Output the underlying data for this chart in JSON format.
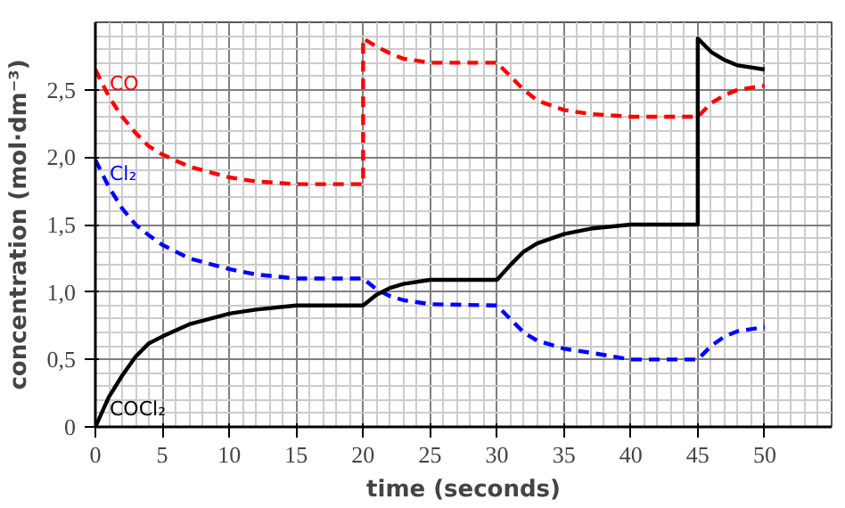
{
  "chart_data": {
    "type": "line",
    "xlabel": "time (seconds)",
    "ylabel": "concentration (mol·dm⁻³)",
    "xlim": [
      0,
      55
    ],
    "ylim": [
      0,
      3
    ],
    "xticks": [
      0,
      5,
      10,
      15,
      20,
      25,
      30,
      35,
      40,
      45,
      50
    ],
    "yticks": [
      0,
      {
        "value": 0.5,
        "label": "0,5"
      },
      {
        "value": 1.0,
        "label": "1,0"
      },
      {
        "value": 1.5,
        "label": "1,5"
      },
      {
        "value": 2.0,
        "label": "2,0"
      },
      {
        "value": 2.5,
        "label": "2,5"
      }
    ],
    "grid": true,
    "marker": "none",
    "series": [
      {
        "name": "CO",
        "color": "#ff0000",
        "line_style": "dashed",
        "x": [
          0,
          1,
          2,
          3,
          4,
          5,
          7,
          10,
          12,
          15,
          20,
          20,
          21,
          22,
          23,
          25,
          30,
          31,
          32,
          33,
          35,
          37,
          40,
          45,
          46,
          47,
          48,
          50
        ],
        "values": [
          2.65,
          2.45,
          2.3,
          2.18,
          2.08,
          2.02,
          1.93,
          1.85,
          1.82,
          1.8,
          1.8,
          2.88,
          2.82,
          2.77,
          2.73,
          2.7,
          2.7,
          2.6,
          2.5,
          2.42,
          2.35,
          2.32,
          2.3,
          2.3,
          2.4,
          2.46,
          2.5,
          2.53
        ]
      },
      {
        "name": "Cl₂",
        "color": "#0000ff",
        "line_style": "dashed",
        "x": [
          0,
          1,
          2,
          3,
          4,
          5,
          7,
          10,
          12,
          15,
          20,
          21,
          22,
          23,
          25,
          30,
          31,
          32,
          33,
          35,
          37,
          40,
          45,
          46,
          47,
          48,
          50
        ],
        "values": [
          1.98,
          1.78,
          1.62,
          1.5,
          1.42,
          1.35,
          1.25,
          1.17,
          1.13,
          1.1,
          1.1,
          1.02,
          0.97,
          0.94,
          0.91,
          0.9,
          0.8,
          0.7,
          0.64,
          0.58,
          0.55,
          0.5,
          0.5,
          0.6,
          0.67,
          0.71,
          0.74
        ]
      },
      {
        "name": "COCl₂",
        "color": "#000000",
        "line_style": "solid",
        "x": [
          0,
          1,
          2,
          3,
          4,
          5,
          7,
          10,
          12,
          15,
          20,
          21,
          22,
          23,
          25,
          30,
          31,
          32,
          33,
          35,
          37,
          40,
          45,
          45,
          46,
          47,
          48,
          50
        ],
        "values": [
          0.0,
          0.22,
          0.38,
          0.52,
          0.62,
          0.67,
          0.76,
          0.84,
          0.87,
          0.9,
          0.9,
          0.98,
          1.03,
          1.06,
          1.09,
          1.09,
          1.2,
          1.3,
          1.36,
          1.43,
          1.47,
          1.5,
          1.5,
          2.88,
          2.78,
          2.72,
          2.68,
          2.65
        ]
      }
    ]
  }
}
